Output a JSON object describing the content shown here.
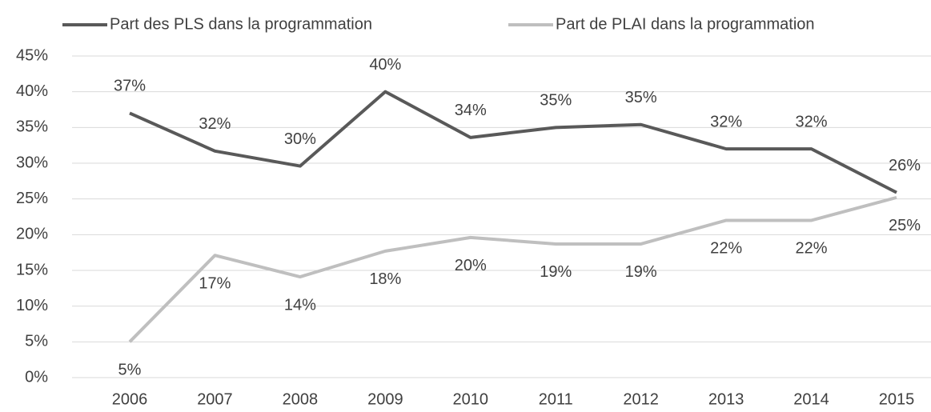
{
  "chart_data": {
    "type": "line",
    "categories": [
      "2006",
      "2007",
      "2008",
      "2009",
      "2010",
      "2011",
      "2012",
      "2013",
      "2014",
      "2015"
    ],
    "series": [
      {
        "name": "Part des PLS dans la programmation",
        "color": "#595959",
        "values": [
          37,
          31.7,
          29.6,
          40,
          33.6,
          35,
          35.4,
          32,
          32,
          25.9
        ],
        "value_labels": [
          "37%",
          "32%",
          "30%",
          "40%",
          "34%",
          "35%",
          "35%",
          "32%",
          "32%",
          "26%"
        ]
      },
      {
        "name": "Part de PLAI dans la programmation",
        "color": "#bfbfbf",
        "values": [
          5,
          17.1,
          14.1,
          17.7,
          19.6,
          18.7,
          18.7,
          22,
          22,
          25.2
        ],
        "value_labels": [
          "5%",
          "17%",
          "14%",
          "18%",
          "20%",
          "19%",
          "19%",
          "22%",
          "22%",
          "25%"
        ]
      }
    ],
    "ylim": [
      0,
      45
    ],
    "yticks": [
      {
        "value": 0,
        "label": "0%"
      },
      {
        "value": 5,
        "label": "5%"
      },
      {
        "value": 10,
        "label": "10%"
      },
      {
        "value": 15,
        "label": "15%"
      },
      {
        "value": 20,
        "label": "20%"
      },
      {
        "value": 25,
        "label": "25%"
      },
      {
        "value": 30,
        "label": "30%"
      },
      {
        "value": 35,
        "label": "35%"
      },
      {
        "value": 40,
        "label": "40%"
      },
      {
        "value": 45,
        "label": "45%"
      }
    ],
    "grid": true,
    "legend": "top"
  }
}
